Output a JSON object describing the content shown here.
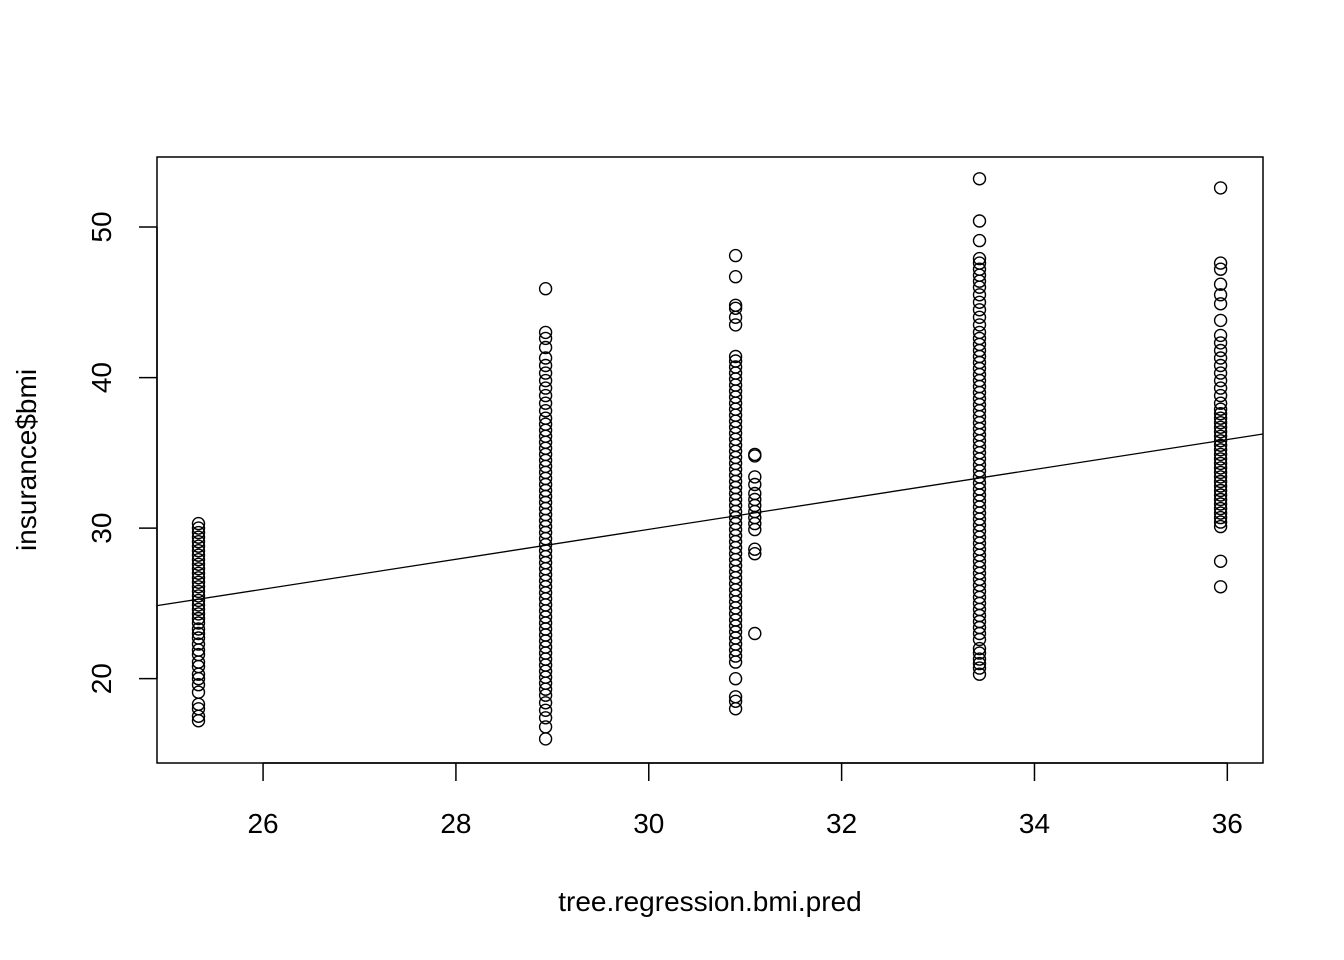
{
  "chart_data": {
    "type": "scatter",
    "title": "",
    "xlabel": "tree.regression.bmi.pred",
    "ylabel": "insurance$bmi",
    "xlim": [
      24.9,
      36.37
    ],
    "ylim": [
      14.4,
      54.65
    ],
    "x_ticks": [
      26,
      28,
      30,
      32,
      34,
      36
    ],
    "y_ticks": [
      20,
      30,
      40,
      50
    ],
    "grid": false,
    "legend": "none",
    "point_color": "#000000",
    "groups": [
      {
        "x": 25.33,
        "y": [
          17.2,
          17.5,
          18.0,
          18.3,
          19.1,
          19.6,
          20.0,
          20.3,
          20.8,
          21.1,
          21.6,
          21.9,
          22.3,
          22.7,
          23.0,
          23.3,
          23.7,
          24.0,
          24.3,
          24.6,
          24.9,
          25.2,
          25.5,
          25.8,
          26.1,
          26.4,
          26.7,
          27.0,
          27.3,
          27.6,
          27.9,
          28.2,
          28.5,
          28.8,
          29.1,
          29.4,
          29.7,
          30.0,
          30.3
        ]
      },
      {
        "x": 28.93,
        "y": [
          16.0,
          16.8,
          17.4,
          17.9,
          18.4,
          18.9,
          19.3,
          19.7,
          20.1,
          20.5,
          20.9,
          21.3,
          21.7,
          22.1,
          22.5,
          22.9,
          23.3,
          23.7,
          24.1,
          24.5,
          24.9,
          25.3,
          25.7,
          26.1,
          26.5,
          26.9,
          27.3,
          27.7,
          28.1,
          28.5,
          28.9,
          29.3,
          29.7,
          30.1,
          30.5,
          30.9,
          31.3,
          31.7,
          32.1,
          32.5,
          32.9,
          33.3,
          33.7,
          34.1,
          34.5,
          34.9,
          35.3,
          35.7,
          36.1,
          36.5,
          36.9,
          37.3,
          37.8,
          38.3,
          38.8,
          39.3,
          39.8,
          40.3,
          40.8,
          41.3,
          42.0,
          42.6,
          43.0,
          45.9
        ]
      },
      {
        "x": 30.9,
        "y": [
          18.0,
          18.5,
          18.8,
          20.0,
          21.1,
          21.5,
          21.9,
          22.3,
          22.7,
          23.1,
          23.5,
          23.9,
          24.3,
          24.7,
          25.1,
          25.5,
          25.9,
          26.3,
          26.7,
          27.1,
          27.5,
          27.9,
          28.3,
          28.7,
          29.1,
          29.5,
          29.9,
          30.3,
          30.7,
          31.1,
          31.5,
          31.9,
          32.3,
          32.7,
          33.1,
          33.5,
          33.9,
          34.3,
          34.7,
          35.1,
          35.5,
          35.9,
          36.3,
          36.7,
          37.1,
          37.5,
          37.9,
          38.3,
          38.7,
          39.1,
          39.5,
          39.9,
          40.3,
          40.7,
          41.1,
          41.4,
          43.5,
          44.0,
          44.6,
          44.8,
          46.7,
          48.1
        ]
      },
      {
        "x": 31.1,
        "y": [
          23.0,
          28.3,
          28.6,
          29.9,
          30.3,
          30.7,
          31.1,
          31.5,
          31.9,
          32.3,
          32.9,
          33.4,
          34.8,
          34.9
        ]
      },
      {
        "x": 33.43,
        "y": [
          20.3,
          20.7,
          21.0,
          21.3,
          21.7,
          22.0,
          22.6,
          23.0,
          23.4,
          23.8,
          24.2,
          24.6,
          25.0,
          25.4,
          25.8,
          26.2,
          26.6,
          27.0,
          27.4,
          27.8,
          28.2,
          28.6,
          29.0,
          29.4,
          29.8,
          30.2,
          30.6,
          31.0,
          31.4,
          31.8,
          32.2,
          32.6,
          33.0,
          33.4,
          33.8,
          34.2,
          34.6,
          35.0,
          35.4,
          35.8,
          36.2,
          36.6,
          37.0,
          37.4,
          37.8,
          38.2,
          38.6,
          39.0,
          39.4,
          39.8,
          40.2,
          40.6,
          41.0,
          41.4,
          41.8,
          42.2,
          42.6,
          43.0,
          43.5,
          44.0,
          44.5,
          45.0,
          45.5,
          46.0,
          46.4,
          46.8,
          47.2,
          47.6,
          47.9,
          49.1,
          50.4,
          53.2
        ]
      },
      {
        "x": 35.93,
        "y": [
          26.1,
          27.8,
          30.1,
          30.4,
          30.7,
          31.0,
          31.3,
          31.6,
          31.9,
          32.2,
          32.5,
          32.8,
          33.1,
          33.4,
          33.7,
          34.0,
          34.3,
          34.6,
          34.9,
          35.2,
          35.5,
          35.8,
          36.1,
          36.4,
          36.7,
          37.0,
          37.3,
          37.6,
          37.9,
          38.3,
          38.8,
          39.3,
          39.8,
          40.3,
          40.8,
          41.3,
          41.8,
          42.3,
          42.8,
          43.8,
          44.9,
          45.5,
          46.2,
          47.2,
          47.6,
          52.6
        ]
      }
    ],
    "fit_line": {
      "x": [
        24.9,
        36.37
      ],
      "y": [
        24.85,
        36.25
      ]
    }
  }
}
